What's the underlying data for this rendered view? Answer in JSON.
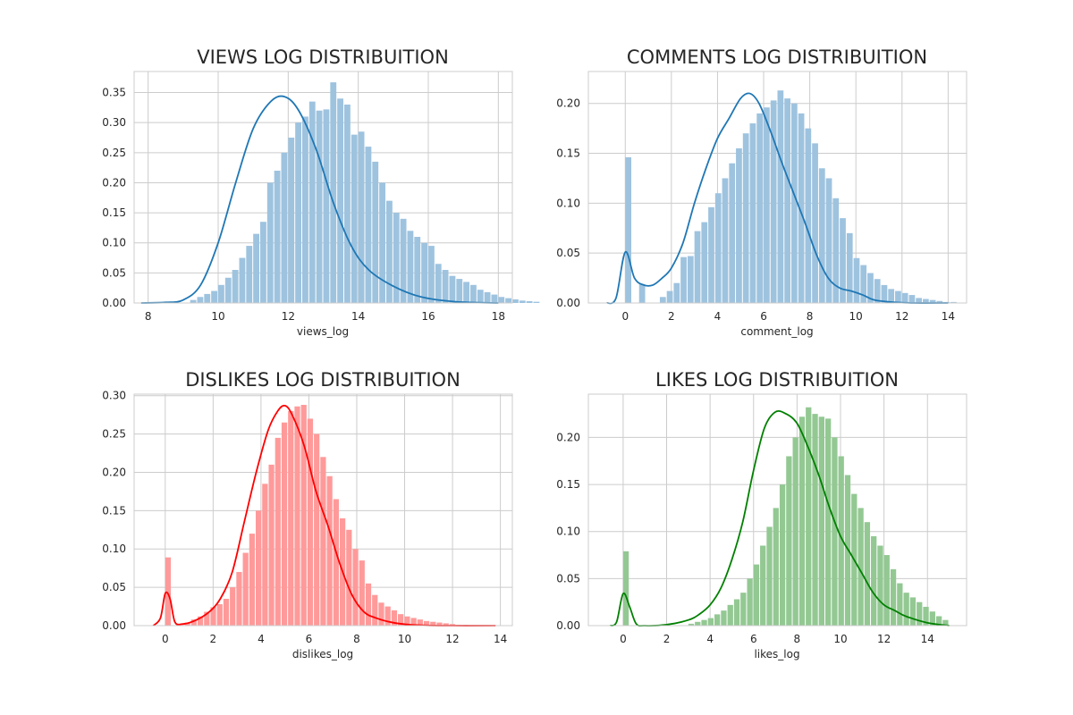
{
  "chart_data": [
    {
      "type": "histogram+kde",
      "title": "VIEWS LOG DISTRIBUITION",
      "xlabel": "views_log",
      "ylabel": "",
      "xlim": [
        7.6,
        18.4
      ],
      "ylim": [
        0,
        0.385
      ],
      "xticks": [
        8,
        10,
        12,
        14,
        16,
        18
      ],
      "yticks": [
        0,
        0.05,
        0.1,
        0.15,
        0.2,
        0.25,
        0.3,
        0.35
      ],
      "ytick_labels": [
        "0.00",
        "0.05",
        "0.10",
        "0.15",
        "0.20",
        "0.25",
        "0.30",
        "0.35"
      ],
      "color": "#1f77b4",
      "bar_color": "#9ec3df",
      "grid": true,
      "bins": {
        "start": 9.2,
        "width": 0.2,
        "values": [
          0.005,
          0.01,
          0.015,
          0.02,
          0.03,
          0.042,
          0.055,
          0.075,
          0.095,
          0.115,
          0.135,
          0.2,
          0.22,
          0.25,
          0.275,
          0.3,
          0.31,
          0.335,
          0.32,
          0.322,
          0.367,
          0.34,
          0.33,
          0.28,
          0.285,
          0.26,
          0.235,
          0.2,
          0.17,
          0.15,
          0.14,
          0.12,
          0.11,
          0.1,
          0.095,
          0.065,
          0.055,
          0.045,
          0.04,
          0.035,
          0.03,
          0.022,
          0.018,
          0.014,
          0.01,
          0.008,
          0.006,
          0.004,
          0.003,
          0.002
        ]
      },
      "kde": {
        "x": [
          7.8,
          8.5,
          9,
          9.5,
          10,
          10.5,
          11,
          11.5,
          11.9,
          12.3,
          12.8,
          13.3,
          13.8,
          14.3,
          15,
          15.8,
          16.8,
          18
        ],
        "y": [
          0,
          0.001,
          0.005,
          0.03,
          0.1,
          0.2,
          0.29,
          0.335,
          0.343,
          0.32,
          0.255,
          0.165,
          0.095,
          0.055,
          0.028,
          0.01,
          0.002,
          0
        ]
      }
    },
    {
      "type": "histogram+kde",
      "title": "COMMENTS LOG DISTRIBUITION",
      "xlabel": "comment_log",
      "ylabel": "",
      "xlim": [
        -1.6,
        14.8
      ],
      "ylim": [
        0,
        0.232
      ],
      "xticks": [
        0,
        2,
        4,
        6,
        8,
        10,
        12,
        14
      ],
      "yticks": [
        0,
        0.05,
        0.1,
        0.15,
        0.2
      ],
      "ytick_labels": [
        "0.00",
        "0.05",
        "0.10",
        "0.15",
        "0.20"
      ],
      "color": "#1f77b4",
      "bar_color": "#9ec3df",
      "grid": true,
      "bins": {
        "start": 0,
        "width": 0.3,
        "values": [
          0.146,
          0,
          0.019,
          0,
          0,
          0.006,
          0.012,
          0.02,
          0.046,
          0.047,
          0.072,
          0.081,
          0.096,
          0.11,
          0.125,
          0.14,
          0.155,
          0.17,
          0.18,
          0.19,
          0.196,
          0.203,
          0.213,
          0.205,
          0.2,
          0.19,
          0.175,
          0.16,
          0.135,
          0.125,
          0.105,
          0.085,
          0.07,
          0.045,
          0.038,
          0.03,
          0.024,
          0.018,
          0.014,
          0.012,
          0.01,
          0.008,
          0.005,
          0.004,
          0.003,
          0.002,
          0.001,
          0.001
        ]
      },
      "kde": {
        "x": [
          -0.8,
          -0.4,
          0,
          0.4,
          0.8,
          1.2,
          1.6,
          2,
          2.5,
          3,
          3.5,
          4,
          4.5,
          5,
          5.4,
          5.8,
          6.3,
          6.8,
          7.3,
          7.8,
          8.3,
          8.8,
          9.3,
          9.8,
          10.3,
          10.8,
          11.5,
          12.5,
          14
        ],
        "y": [
          0,
          0.005,
          0.051,
          0.025,
          0.018,
          0.018,
          0.025,
          0.035,
          0.06,
          0.1,
          0.135,
          0.165,
          0.185,
          0.205,
          0.21,
          0.2,
          0.172,
          0.14,
          0.11,
          0.08,
          0.048,
          0.025,
          0.015,
          0.012,
          0.008,
          0.003,
          0.001,
          0,
          0
        ]
      }
    },
    {
      "type": "histogram+kde",
      "title": "DISLIKES LOG DISTRIBUITION",
      "xlabel": "dislikes_log",
      "ylabel": "",
      "xlim": [
        -1.3,
        14.5
      ],
      "ylim": [
        0,
        0.302
      ],
      "xticks": [
        0,
        2,
        4,
        6,
        8,
        10,
        12,
        14
      ],
      "yticks": [
        0,
        0.05,
        0.1,
        0.15,
        0.2,
        0.25,
        0.3
      ],
      "ytick_labels": [
        "0.00",
        "0.05",
        "0.10",
        "0.15",
        "0.20",
        "0.25",
        "0.30"
      ],
      "color": "#ff0000",
      "bar_color": "#ff9a9a",
      "grid": true,
      "bins": {
        "start": 0,
        "width": 0.27,
        "values": [
          0.089,
          0,
          0.002,
          0.004,
          0.008,
          0.012,
          0.018,
          0.024,
          0.028,
          0.035,
          0.05,
          0.07,
          0.095,
          0.12,
          0.15,
          0.185,
          0.21,
          0.245,
          0.265,
          0.28,
          0.286,
          0.288,
          0.27,
          0.25,
          0.22,
          0.195,
          0.165,
          0.14,
          0.125,
          0.1,
          0.085,
          0.055,
          0.04,
          0.03,
          0.025,
          0.02,
          0.015,
          0.012,
          0.01,
          0.008,
          0.006,
          0.005,
          0.004,
          0.003,
          0.002,
          0.001,
          0.001
        ]
      },
      "kde": {
        "x": [
          -0.5,
          -0.2,
          0,
          0.2,
          0.4,
          0.7,
          1.2,
          1.8,
          2.3,
          2.8,
          3.3,
          3.8,
          4.3,
          4.7,
          5,
          5.3,
          5.8,
          6.3,
          6.8,
          7.3,
          7.8,
          8.3,
          8.8,
          9.5,
          10.3,
          11.5,
          13.8
        ],
        "y": [
          0,
          0.01,
          0.042,
          0.035,
          0.005,
          0.002,
          0.006,
          0.017,
          0.035,
          0.07,
          0.135,
          0.2,
          0.255,
          0.28,
          0.287,
          0.275,
          0.235,
          0.175,
          0.13,
          0.08,
          0.04,
          0.018,
          0.01,
          0.004,
          0.001,
          0,
          0
        ]
      }
    },
    {
      "type": "histogram+kde",
      "title": "LIKES LOG DISTRIBUITION",
      "xlabel": "likes_log",
      "ylabel": "",
      "xlim": [
        -1.6,
        15.8
      ],
      "ylim": [
        0,
        0.246
      ],
      "xticks": [
        0,
        2,
        4,
        6,
        8,
        10,
        12,
        14
      ],
      "yticks": [
        0,
        0.05,
        0.1,
        0.15,
        0.2
      ],
      "ytick_labels": [
        "0.00",
        "0.05",
        "0.10",
        "0.15",
        "0.20"
      ],
      "color": "#008000",
      "bar_color": "#93c893",
      "grid": true,
      "bins": {
        "start": 0,
        "width": 0.3,
        "values": [
          0.079,
          0,
          0,
          0,
          0,
          0,
          0,
          0,
          0,
          0,
          0.002,
          0.004,
          0.006,
          0.008,
          0.012,
          0.016,
          0.022,
          0.028,
          0.035,
          0.05,
          0.065,
          0.085,
          0.105,
          0.125,
          0.15,
          0.18,
          0.2,
          0.222,
          0.232,
          0.225,
          0.222,
          0.22,
          0.2,
          0.18,
          0.16,
          0.14,
          0.125,
          0.11,
          0.095,
          0.085,
          0.075,
          0.06,
          0.045,
          0.035,
          0.03,
          0.025,
          0.02,
          0.015,
          0.01,
          0.006
        ]
      },
      "kde": {
        "x": [
          -0.6,
          -0.3,
          0,
          0.3,
          0.6,
          1,
          2,
          3,
          3.5,
          4,
          4.5,
          5,
          5.5,
          6,
          6.5,
          7,
          7.5,
          8,
          8.5,
          9,
          9.5,
          10,
          10.5,
          11,
          11.5,
          12,
          12.5,
          13,
          14,
          15
        ],
        "y": [
          0,
          0.004,
          0.034,
          0.02,
          0.002,
          0,
          0.001,
          0.006,
          0.012,
          0.022,
          0.04,
          0.07,
          0.11,
          0.165,
          0.21,
          0.227,
          0.225,
          0.215,
          0.19,
          0.16,
          0.125,
          0.095,
          0.075,
          0.055,
          0.035,
          0.022,
          0.016,
          0.01,
          0.003,
          0
        ]
      }
    }
  ]
}
